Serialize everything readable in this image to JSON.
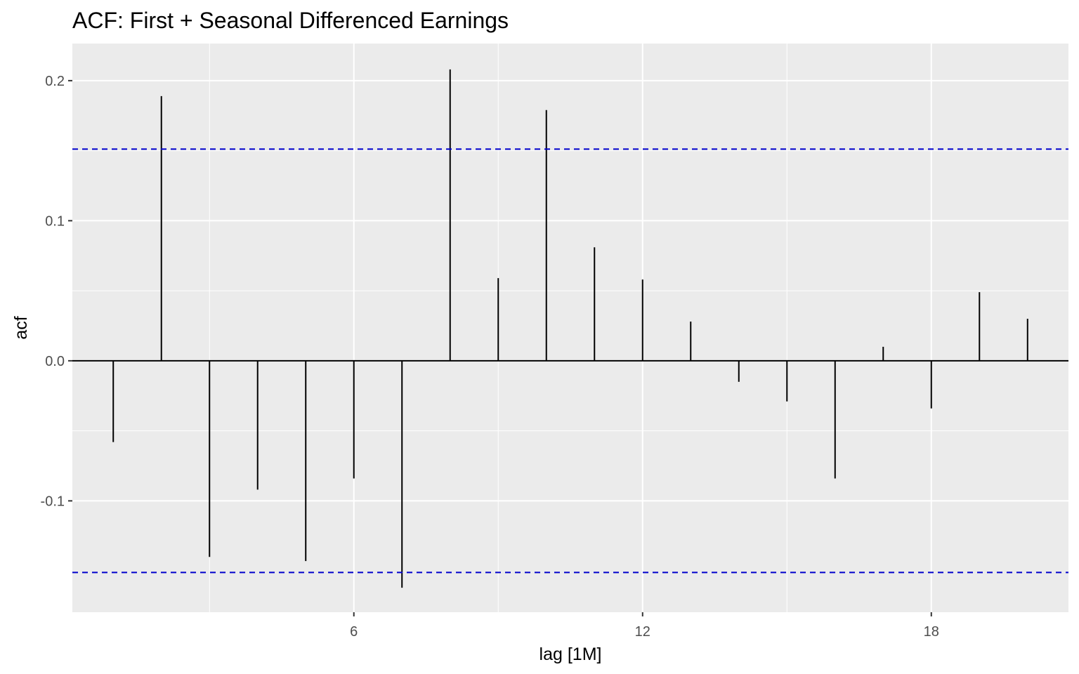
{
  "chart_data": {
    "type": "bar",
    "title": "ACF: First + Seasonal Differenced Earnings",
    "xlabel": "lag [1M]",
    "ylabel": "acf",
    "x": [
      1,
      2,
      3,
      4,
      5,
      6,
      7,
      8,
      9,
      10,
      11,
      12,
      13,
      14,
      15,
      16,
      17,
      18,
      19,
      20
    ],
    "values": [
      -0.058,
      0.189,
      -0.14,
      -0.092,
      -0.143,
      -0.084,
      -0.162,
      0.208,
      0.059,
      0.179,
      0.081,
      0.058,
      0.028,
      -0.015,
      -0.029,
      -0.084,
      0.01,
      -0.034,
      0.049,
      0.03
    ],
    "xlim": [
      0.15,
      20.85
    ],
    "ylim": [
      -0.1795,
      0.2265
    ],
    "x_major_ticks": [
      6,
      12,
      18
    ],
    "x_minor_ticks": [
      3,
      9,
      15
    ],
    "x_tick_labels": [
      "6",
      "12",
      "18"
    ],
    "y_major_ticks": [
      -0.1,
      0.0,
      0.1,
      0.2
    ],
    "y_minor_ticks": [
      -0.05,
      0.05,
      0.15
    ],
    "y_tick_labels": [
      "-0.1",
      "0.0",
      "0.1",
      "0.2"
    ],
    "confidence_bounds": [
      0.1511,
      -0.1511
    ],
    "grid": true,
    "colors": {
      "panel": "#ebebeb",
      "grid": "#ffffff",
      "bars": "#000000",
      "zero_line": "#000000",
      "bounds": "#0000cc"
    }
  }
}
